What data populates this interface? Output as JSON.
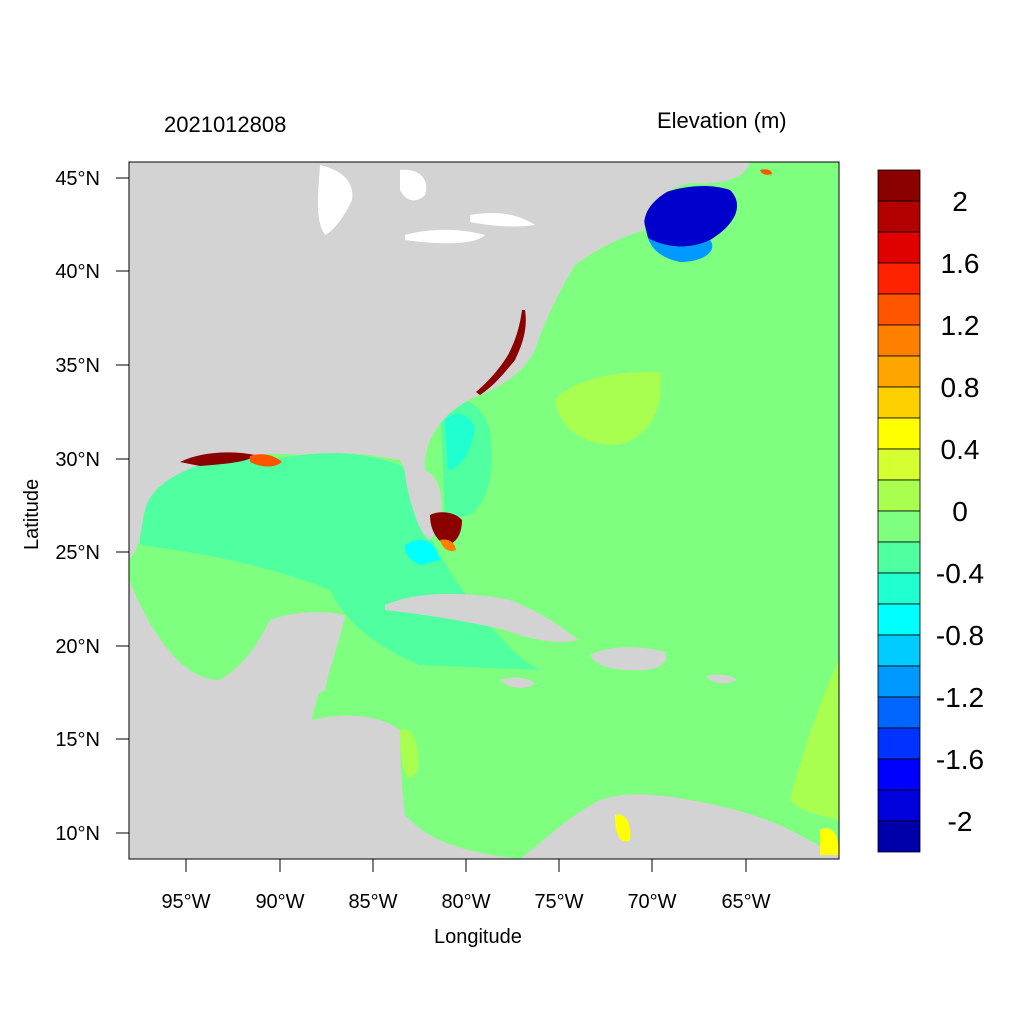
{
  "header": {
    "date_label": "2021012808",
    "units_label": "Elevation (m)"
  },
  "axes": {
    "x_title": "Longitude",
    "y_title": "Latitude",
    "x_ticks": [
      "95°W",
      "90°W",
      "85°W",
      "80°W",
      "75°W",
      "70°W",
      "65°W"
    ],
    "y_ticks": [
      "45°N",
      "40°N",
      "35°N",
      "30°N",
      "25°N",
      "20°N",
      "15°N",
      "10°N"
    ]
  },
  "colorbar": {
    "labels": [
      "2",
      "1.6",
      "1.2",
      "0.8",
      "0.4",
      "0",
      "-0.4",
      "-0.8",
      "-1.2",
      "-1.6",
      "-2"
    ],
    "colors": [
      "#8b0000",
      "#b30000",
      "#e00000",
      "#ff2200",
      "#ff5500",
      "#ff7f00",
      "#ffa500",
      "#ffd000",
      "#ffff00",
      "#d4ff30",
      "#a8ff50",
      "#7fff7f",
      "#50ffa0",
      "#20ffd0",
      "#00ffff",
      "#00ccff",
      "#0099ff",
      "#0066ff",
      "#0033ff",
      "#0000ff",
      "#0000dd",
      "#0000aa"
    ]
  },
  "map_colors": {
    "land": "#d3d3d3",
    "ocean_zero": "#7fff7f",
    "gulf_minus": "#50ffa0",
    "deep_minus": "#0000cc",
    "surge_plus": "#8b0000"
  }
}
